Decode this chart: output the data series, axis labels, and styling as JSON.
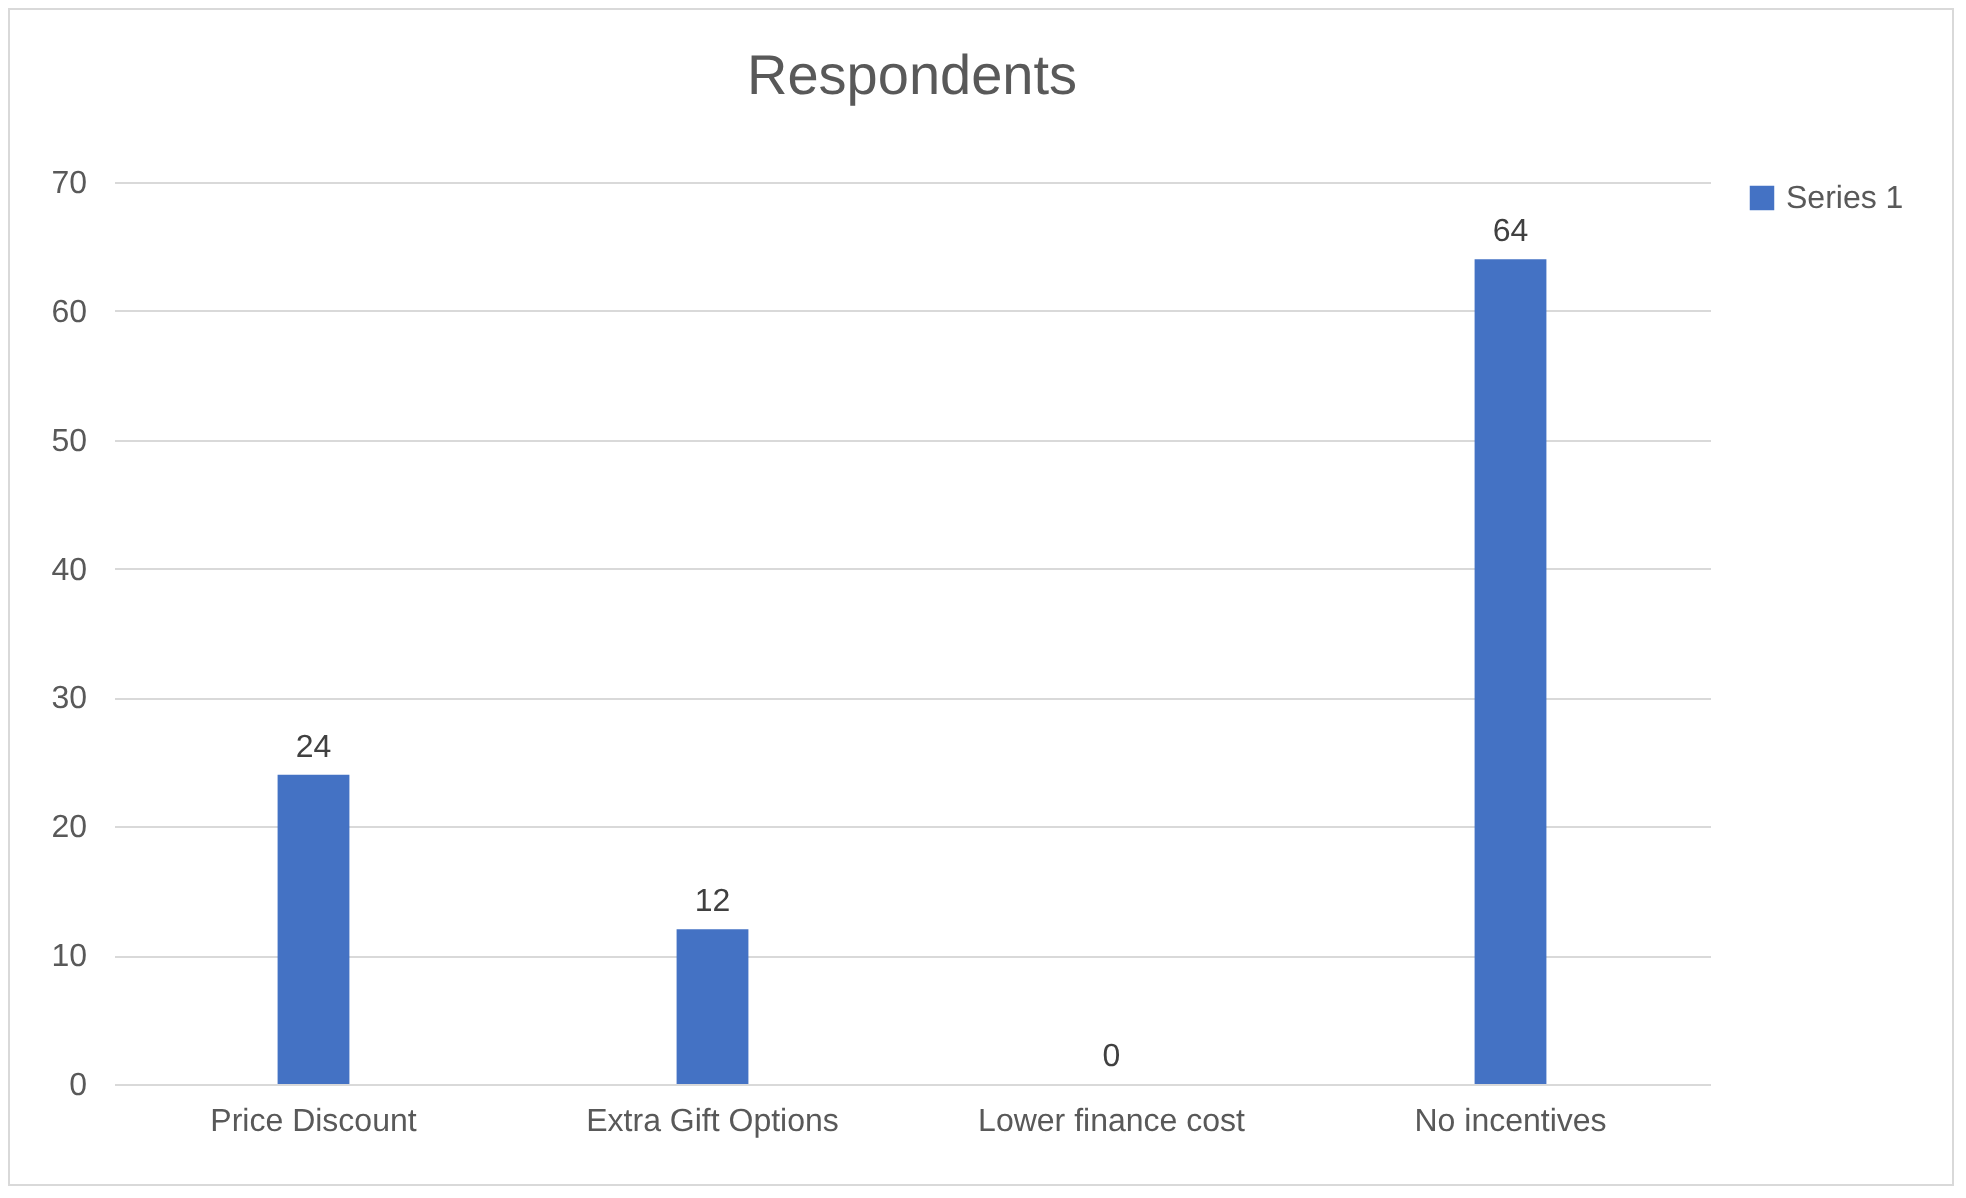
{
  "chart_data": {
    "type": "bar",
    "title": "Respondents",
    "categories": [
      "Price Discount",
      "Extra Gift Options",
      "Lower finance cost",
      "No incentives"
    ],
    "series": [
      {
        "name": "Series 1",
        "color": "#4472c4",
        "values": [
          24,
          12,
          0,
          64
        ]
      }
    ],
    "ylim": [
      0,
      70
    ],
    "yticks": [
      0,
      10,
      20,
      30,
      40,
      50,
      60,
      70
    ],
    "grid": "y",
    "legend": "right",
    "data_labels": true
  }
}
